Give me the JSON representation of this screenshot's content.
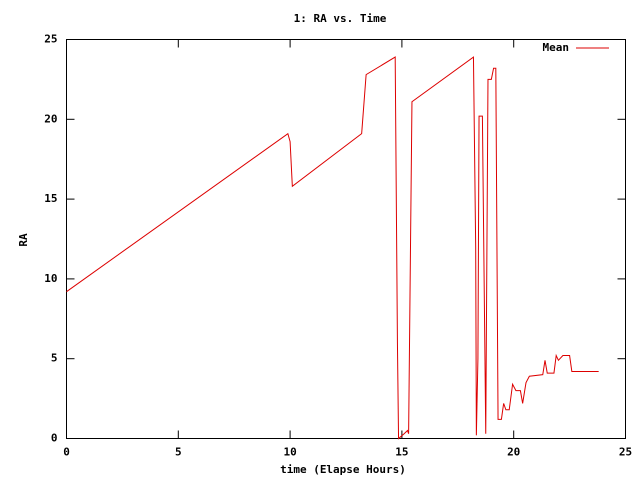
{
  "chart_data": {
    "type": "line",
    "title": "1: RA vs. Time",
    "x_label": "time (Elapse Hours)",
    "y_label": "RA",
    "x": [
      0,
      9.9,
      10.0,
      10.1,
      13.2,
      13.4,
      14.7,
      14.8,
      14.85,
      15.1,
      15.25,
      15.3,
      15.45,
      18.2,
      18.3,
      18.33,
      18.4,
      18.45,
      18.6,
      18.75,
      18.85,
      19.0,
      19.1,
      19.2,
      19.3,
      19.45,
      19.55,
      19.65,
      19.8,
      19.95,
      20.1,
      20.3,
      20.4,
      20.55,
      20.7,
      21.3,
      21.4,
      21.5,
      21.8,
      21.9,
      22.0,
      22.2,
      22.5,
      22.6,
      23.8
    ],
    "series": [
      {
        "name": "Mean",
        "color": "#dd0000",
        "values": [
          9.2,
          19.1,
          18.6,
          15.8,
          19.1,
          22.8,
          23.9,
          6,
          0,
          0.3,
          0.5,
          0.3,
          21.1,
          23.9,
          12,
          0.2,
          5,
          20.2,
          20.2,
          0.3,
          22.5,
          22.5,
          23.2,
          23.2,
          1.2,
          1.2,
          2.2,
          1.8,
          1.8,
          3.4,
          3.0,
          3.0,
          2.2,
          3.5,
          3.9,
          4.0,
          4.9,
          4.1,
          4.1,
          5.2,
          4.9,
          5.2,
          5.2,
          4.2,
          4.2
        ]
      }
    ],
    "xlim": [
      0,
      25
    ],
    "xticks": [
      0,
      5,
      10,
      15,
      20,
      25
    ],
    "ylim": [
      0,
      25
    ],
    "yticks": [
      0,
      5,
      10,
      15,
      20,
      25
    ],
    "grid": false,
    "legend": "top-right"
  }
}
